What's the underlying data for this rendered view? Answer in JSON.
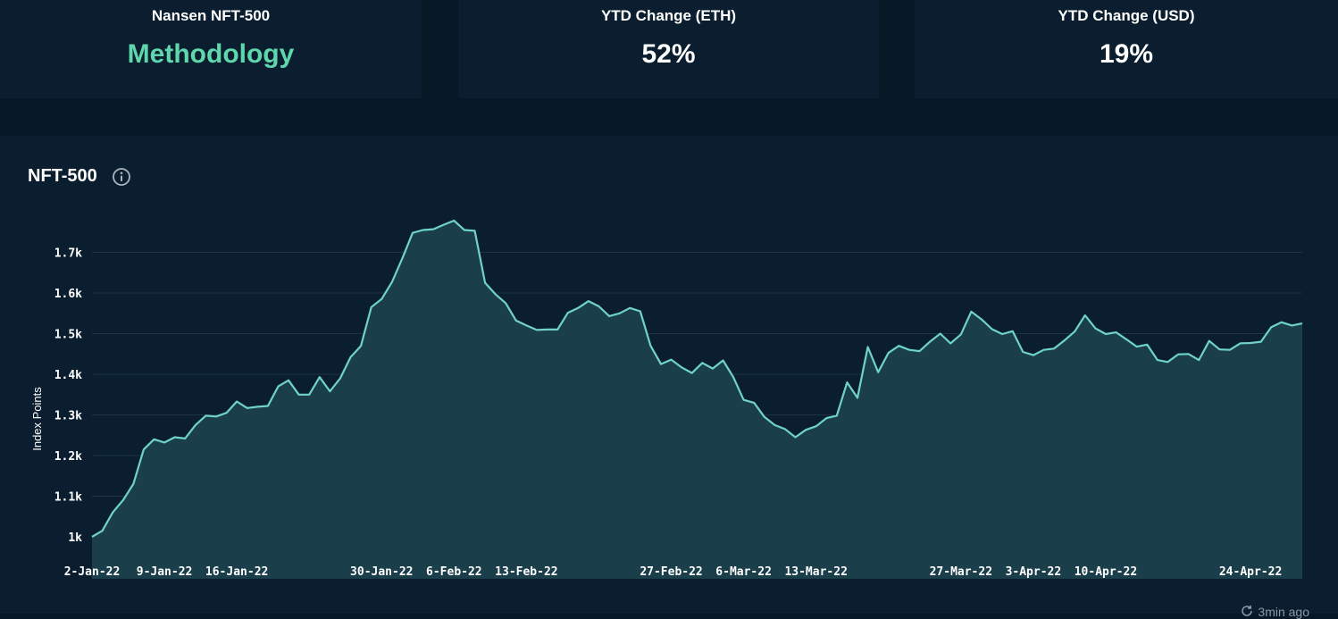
{
  "stats": [
    {
      "title": "Nansen NFT-500",
      "value": "Methodology",
      "kind": "link"
    },
    {
      "title": "YTD Change (ETH)",
      "value": "52%",
      "kind": "value"
    },
    {
      "title": "YTD Change (USD)",
      "value": "19%",
      "kind": "value"
    }
  ],
  "chart_panel": {
    "title": "NFT-500",
    "info_icon": "info-icon",
    "updated": "3min ago",
    "refresh_icon": "refresh-icon"
  },
  "colors": {
    "line": "#6fd3c6",
    "area": "#1a3e4a",
    "grid": "#1e3347",
    "link": "#5fd6ac"
  },
  "chart_data": {
    "type": "area",
    "title": "NFT-500",
    "xlabel": "",
    "ylabel": "Index Points",
    "ylim": [
      1000,
      1750
    ],
    "y_ticks": [
      1000,
      1100,
      1200,
      1300,
      1400,
      1500,
      1600,
      1700
    ],
    "y_tick_labels": [
      "1k",
      "1.1k",
      "1.2k",
      "1.3k",
      "1.4k",
      "1.5k",
      "1.6k",
      "1.7k"
    ],
    "x_start": "2022-01-02",
    "x_ticks": [
      {
        "day": 0,
        "label": "2-Jan-22"
      },
      {
        "day": 7,
        "label": "9-Jan-22"
      },
      {
        "day": 14,
        "label": "16-Jan-22"
      },
      {
        "day": 28,
        "label": "30-Jan-22"
      },
      {
        "day": 35,
        "label": "6-Feb-22"
      },
      {
        "day": 42,
        "label": "13-Feb-22"
      },
      {
        "day": 56,
        "label": "27-Feb-22"
      },
      {
        "day": 63,
        "label": "6-Mar-22"
      },
      {
        "day": 70,
        "label": "13-Mar-22"
      },
      {
        "day": 84,
        "label": "27-Mar-22"
      },
      {
        "day": 91,
        "label": "3-Apr-22"
      },
      {
        "day": 98,
        "label": "10-Apr-22"
      },
      {
        "day": 112,
        "label": "24-Apr-22"
      }
    ],
    "grid": true,
    "series": [
      {
        "values": [
          1000,
          1015,
          1060,
          1090,
          1130,
          1215,
          1240,
          1232,
          1245,
          1242,
          1275,
          1298,
          1296,
          1305,
          1333,
          1317,
          1320,
          1322,
          1370,
          1385,
          1350,
          1350,
          1393,
          1358,
          1390,
          1442,
          1470,
          1565,
          1585,
          1627,
          1685,
          1748,
          1755,
          1757,
          1768,
          1778,
          1755,
          1753,
          1625,
          1597,
          1575,
          1532,
          1520,
          1509,
          1510,
          1510,
          1551,
          1563,
          1580,
          1567,
          1543,
          1550,
          1563,
          1555,
          1470,
          1425,
          1436,
          1417,
          1403,
          1428,
          1414,
          1434,
          1393,
          1337,
          1330,
          1295,
          1275,
          1265,
          1245,
          1263,
          1272,
          1292,
          1298,
          1380,
          1342,
          1467,
          1405,
          1453,
          1470,
          1460,
          1457,
          1480,
          1500,
          1476,
          1498,
          1554,
          1535,
          1511,
          1499,
          1506,
          1455,
          1447,
          1460,
          1463,
          1483,
          1505,
          1545,
          1513,
          1499,
          1503,
          1486,
          1468,
          1473,
          1435,
          1430,
          1449,
          1450,
          1435,
          1482,
          1461,
          1460,
          1476,
          1477,
          1480,
          1516,
          1528,
          1520,
          1525
        ]
      }
    ]
  }
}
